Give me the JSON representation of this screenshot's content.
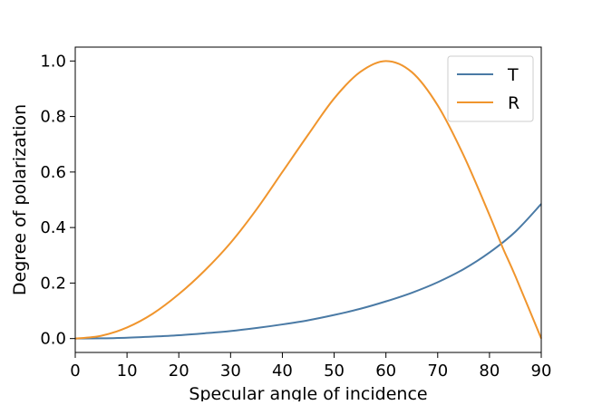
{
  "chart_data": {
    "type": "line",
    "title": "",
    "xlabel": "Specular angle of incidence",
    "ylabel": "Degree of polarization",
    "xlim": [
      0,
      90
    ],
    "ylim": [
      -0.05,
      1.05
    ],
    "xticks": [
      0,
      10,
      20,
      30,
      40,
      50,
      60,
      70,
      80,
      90
    ],
    "yticks": [
      0.0,
      0.2,
      0.4,
      0.6,
      0.8,
      1.0
    ],
    "xtick_labels": [
      "0",
      "10",
      "20",
      "30",
      "40",
      "50",
      "60",
      "70",
      "80",
      "90"
    ],
    "ytick_labels": [
      "0.0",
      "0.2",
      "0.4",
      "0.6",
      "0.8",
      "1.0"
    ],
    "grid": false,
    "legend_position": "top-right",
    "series": [
      {
        "name": "T",
        "color": "#4a7aa5",
        "x": [
          0,
          5,
          10,
          15,
          20,
          25,
          30,
          35,
          40,
          45,
          50,
          55,
          60,
          65,
          70,
          75,
          80,
          85,
          90
        ],
        "y": [
          0.0,
          0.001,
          0.003,
          0.007,
          0.012,
          0.019,
          0.027,
          0.038,
          0.051,
          0.066,
          0.085,
          0.107,
          0.134,
          0.165,
          0.203,
          0.25,
          0.31,
          0.385,
          0.485
        ]
      },
      {
        "name": "R",
        "color": "#f0952d",
        "x": [
          0,
          5,
          10,
          15,
          20,
          25,
          30,
          35,
          40,
          45,
          50,
          55,
          60,
          65,
          70,
          75,
          80,
          82.5,
          85,
          90
        ],
        "y": [
          0.0,
          0.01,
          0.04,
          0.09,
          0.16,
          0.245,
          0.345,
          0.465,
          0.6,
          0.735,
          0.865,
          0.96,
          1.0,
          0.96,
          0.84,
          0.66,
          0.445,
          0.33,
          0.225,
          0.0
        ]
      }
    ]
  }
}
